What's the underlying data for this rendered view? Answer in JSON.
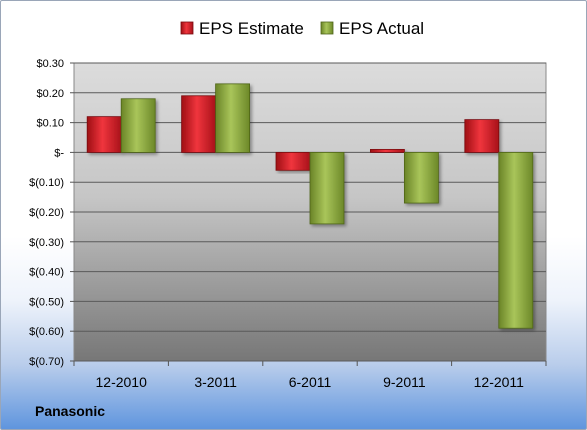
{
  "company": "Panasonic",
  "chart_data": {
    "type": "bar",
    "categories": [
      "12-2010",
      "3-2011",
      "6-2011",
      "9-2011",
      "12-2011"
    ],
    "series": [
      {
        "name": "EPS Estimate",
        "color": "#d91e2a",
        "values": [
          0.12,
          0.19,
          -0.06,
          0.01,
          0.11
        ]
      },
      {
        "name": "EPS Actual",
        "color": "#8fae3c",
        "values": [
          0.18,
          0.23,
          -0.24,
          -0.17,
          -0.59
        ]
      }
    ],
    "y_ticks": [
      0.3,
      0.2,
      0.1,
      0,
      -0.1,
      -0.2,
      -0.3,
      -0.4,
      -0.5,
      -0.6,
      -0.7
    ],
    "y_tick_labels": [
      "$0.30",
      "$0.20",
      "$0.10",
      "$-",
      "$(0.10)",
      "$(0.20)",
      "$(0.30)",
      "$(0.40)",
      "$(0.50)",
      "$(0.60)",
      "$(0.70)"
    ],
    "ylim": [
      -0.7,
      0.3
    ],
    "grid": true,
    "legend_position": "top"
  }
}
